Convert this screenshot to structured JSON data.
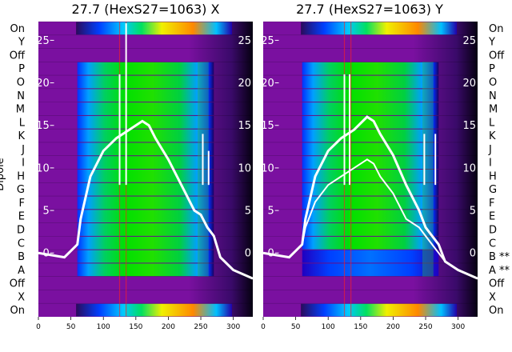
{
  "chart_data": {
    "type": "heatmap",
    "ylabel": "Dipole",
    "row_labels": [
      "On",
      "Y",
      "Off",
      "P",
      "O",
      "N",
      "M",
      "L",
      "K",
      "J",
      "I",
      "H",
      "G",
      "F",
      "E",
      "D",
      "C",
      "B",
      "A",
      "Off",
      "X",
      "On"
    ],
    "x_ticks": [
      0,
      50,
      100,
      150,
      200,
      250,
      300
    ],
    "xlim": [
      0,
      330
    ],
    "overlay_ticks": [
      0,
      5,
      10,
      15,
      20,
      25
    ],
    "overlay_ylim": [
      -7.5,
      27.2
    ],
    "panels": [
      {
        "title": "27.7 (HexS27=1063) X",
        "right_labels": [
          "",
          "",
          "",
          "",
          "",
          "",
          "",
          "",
          "",
          "",
          "",
          "",
          "",
          "",
          "",
          "",
          "",
          "",
          "",
          "",
          "",
          ""
        ],
        "lines": [
          {
            "x": [
              0,
              40,
              60,
              65,
              80,
              100,
              120,
              140,
              160,
              170,
              180,
              200,
              220,
              240,
              250,
              260,
              270,
              280,
              300,
              330
            ],
            "y": [
              0,
              -0.5,
              1,
              4,
              9,
              12,
              13.5,
              14.5,
              15.5,
              15,
              13.5,
              11,
              8,
              5,
              4.5,
              3,
              2,
              -0.5,
              -2,
              -3
            ]
          },
          {
            "x": [
              0,
              40,
              60,
              65,
              80,
              100,
              120,
              140,
              160,
              170,
              180,
              200,
              220,
              240,
              250,
              260,
              270,
              280,
              300,
              330
            ],
            "y": [
              0,
              -0.5,
              1,
              4,
              9,
              12,
              13.5,
              14.5,
              15.5,
              15,
              13.5,
              11,
              8,
              5,
              4.5,
              3,
              2,
              -0.5,
              -2,
              -3
            ]
          }
        ],
        "spikes": [
          {
            "x": 125,
            "y": 21
          },
          {
            "x": 135,
            "y": 27
          },
          {
            "x": 253,
            "y": 14
          },
          {
            "x": 262,
            "y": 12
          }
        ]
      },
      {
        "title": "27.7 (HexS27=1063) Y",
        "right_labels": [
          "On",
          "Y",
          "Off",
          "P",
          "O",
          "N",
          "M",
          "L",
          "K",
          "J",
          "I",
          "H",
          "G",
          "F",
          "E",
          "D",
          "C",
          "B **",
          "A **",
          "Off",
          "X",
          "On"
        ],
        "lines": [
          {
            "x": [
              0,
              40,
              60,
              65,
              80,
              100,
              120,
              140,
              160,
              170,
              180,
              200,
              220,
              240,
              250,
              260,
              270,
              280,
              300,
              330
            ],
            "y": [
              0,
              -0.5,
              1,
              4,
              9,
              12,
              13.5,
              14.5,
              16,
              15.5,
              14,
              11.5,
              8,
              5,
              3,
              2,
              1,
              -1,
              -2,
              -3
            ]
          },
          {
            "x": [
              0,
              40,
              60,
              65,
              80,
              100,
              120,
              140,
              160,
              170,
              180,
              200,
              220,
              240,
              250,
              260,
              270,
              280,
              300,
              330
            ],
            "y": [
              0,
              -0.5,
              1,
              3,
              6,
              8,
              9,
              10,
              11,
              10.5,
              9,
              7,
              4,
              3,
              2,
              1,
              0,
              -1,
              -2,
              -3
            ]
          }
        ],
        "spikes": [
          {
            "x": 125,
            "y": 21
          },
          {
            "x": 133,
            "y": 21
          },
          {
            "x": 248,
            "y": 14
          },
          {
            "x": 265,
            "y": 14
          }
        ]
      }
    ]
  }
}
